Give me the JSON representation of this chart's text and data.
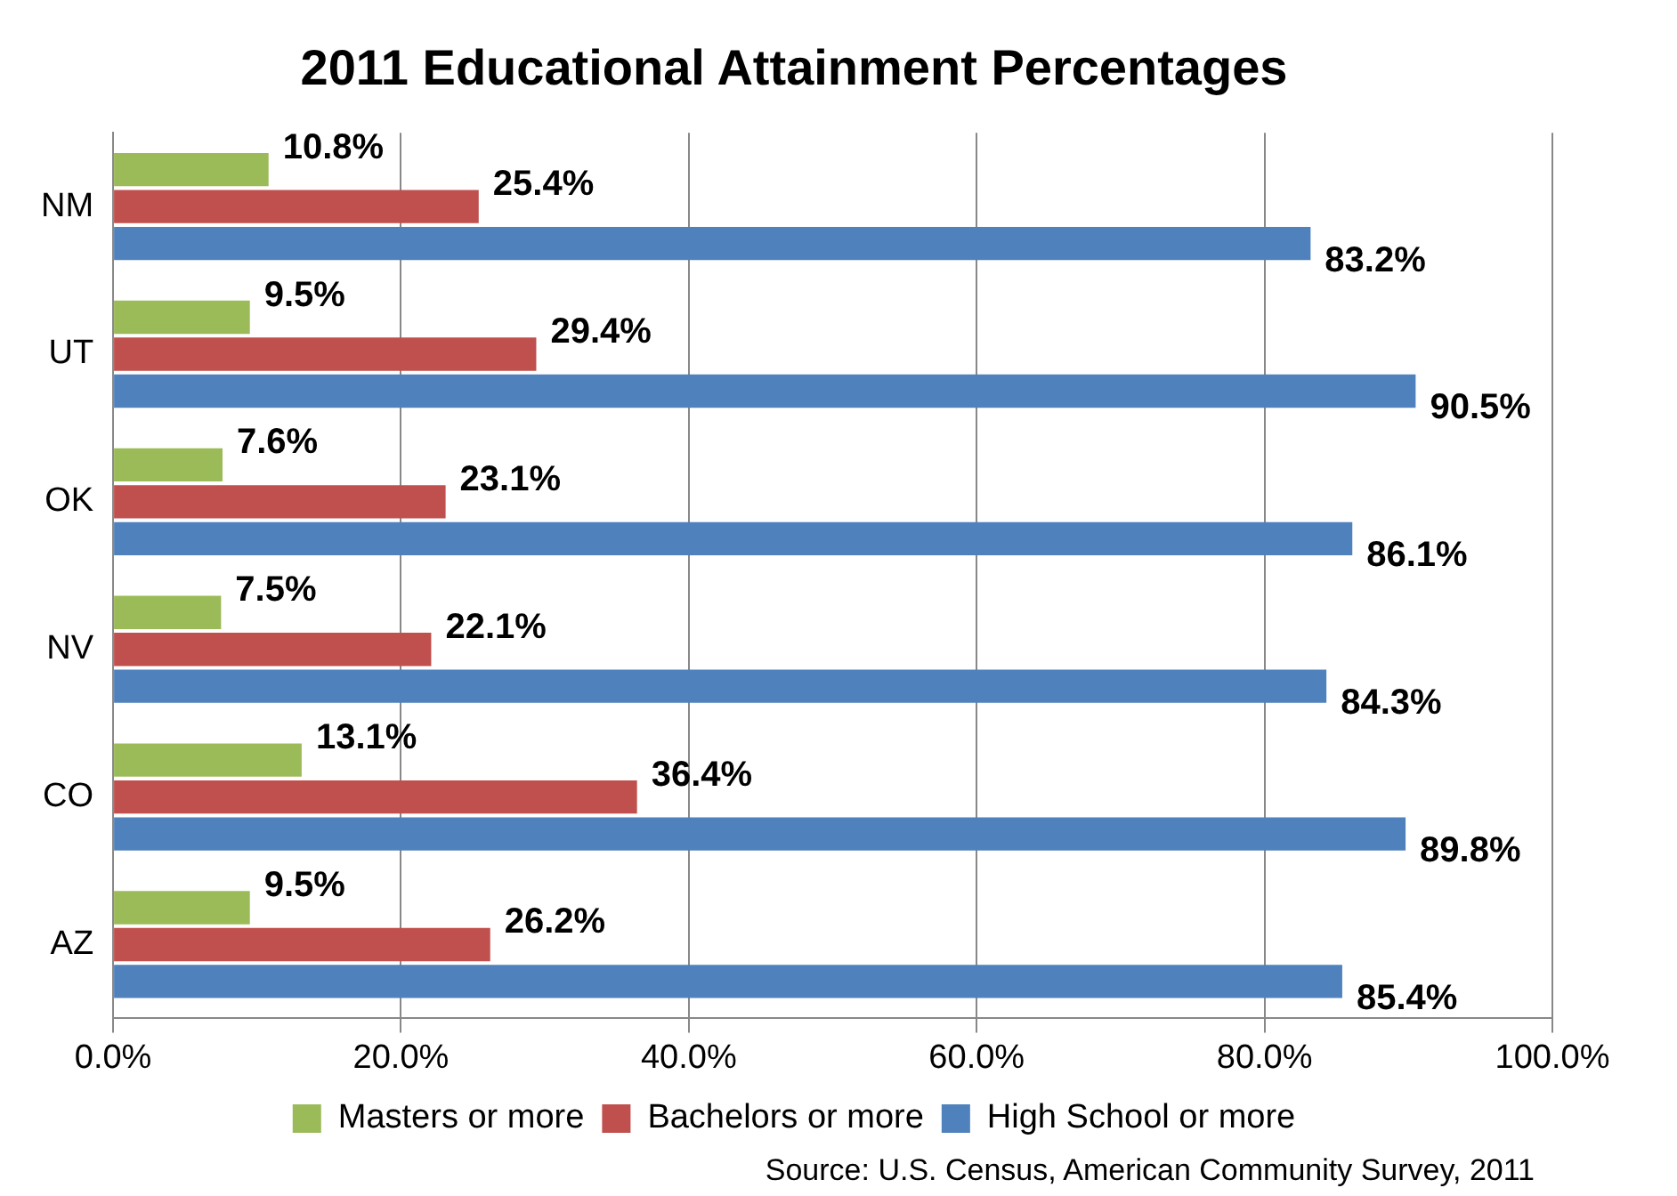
{
  "chart_data": {
    "type": "bar",
    "orientation": "horizontal",
    "title": "2011 Educational Attainment Percentages",
    "categories": [
      "NM",
      "UT",
      "OK",
      "NV",
      "CO",
      "AZ"
    ],
    "series": [
      {
        "name": "Masters or more",
        "color": "#9bbb59",
        "values": [
          10.8,
          9.5,
          7.6,
          7.5,
          13.1,
          9.5
        ],
        "value_labels": [
          "10.8%",
          "9.5%",
          "7.6%",
          "7.5%",
          "13.1%",
          "9.5%"
        ]
      },
      {
        "name": "Bachelors or more",
        "color": "#c0504d",
        "values": [
          25.4,
          29.4,
          23.1,
          22.1,
          36.4,
          26.2
        ],
        "value_labels": [
          "25.4%",
          "29.4%",
          "23.1%",
          "22.1%",
          "36.4%",
          "26.2%"
        ]
      },
      {
        "name": "High School or more",
        "color": "#4f81bd",
        "values": [
          83.2,
          90.5,
          86.1,
          84.3,
          89.8,
          85.4
        ],
        "value_labels": [
          "83.2%",
          "90.5%",
          "86.1%",
          "84.3%",
          "89.8%",
          "85.4%"
        ]
      }
    ],
    "xlim": [
      0,
      100
    ],
    "xticks": [
      {
        "value": 0,
        "label": "0.0%"
      },
      {
        "value": 20,
        "label": "20.0%"
      },
      {
        "value": 40,
        "label": "40.0%"
      },
      {
        "value": 60,
        "label": "60.0%"
      },
      {
        "value": 80,
        "label": "80.0%"
      },
      {
        "value": 100,
        "label": "100.0%"
      }
    ],
    "grid": "x",
    "legend": "bottom",
    "annotations": [
      "Source: U.S. Census, American Community Survey, 2011"
    ]
  }
}
